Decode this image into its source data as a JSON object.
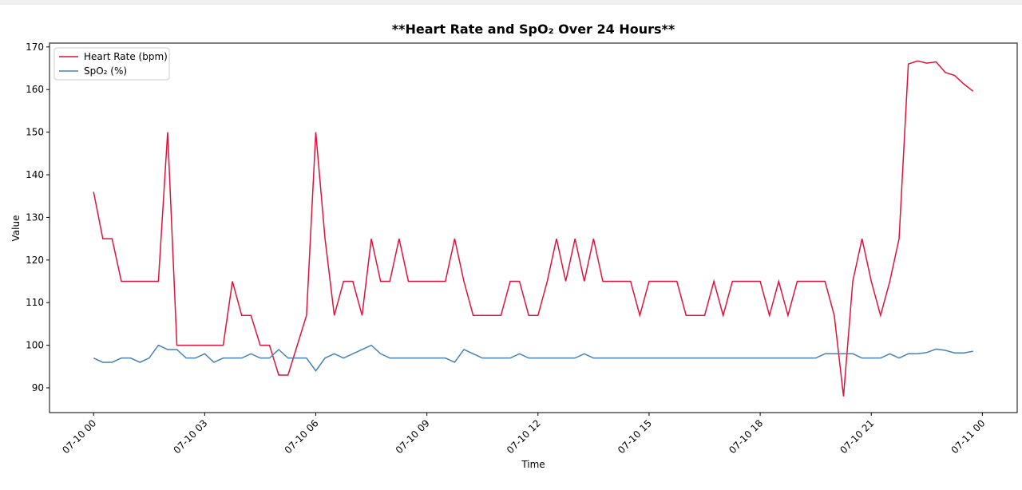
{
  "chart_data": {
    "type": "line",
    "title": "**Heart Rate and SpO₂ Over 24 Hours**",
    "xlabel": "Time",
    "ylabel": "Value",
    "x": [
      0,
      0.25,
      0.5,
      0.75,
      1,
      1.25,
      1.5,
      1.75,
      2,
      2.25,
      2.5,
      2.75,
      3,
      3.25,
      3.5,
      3.75,
      4,
      4.25,
      4.5,
      4.75,
      5,
      5.25,
      5.5,
      5.75,
      6,
      6.25,
      6.5,
      6.75,
      7,
      7.25,
      7.5,
      7.75,
      8,
      8.25,
      8.5,
      8.75,
      9,
      9.25,
      9.5,
      9.75,
      10,
      10.25,
      10.5,
      10.75,
      11,
      11.25,
      11.5,
      11.75,
      12,
      12.25,
      12.5,
      12.75,
      13,
      13.25,
      13.5,
      13.75,
      14,
      14.25,
      14.5,
      14.75,
      15,
      15.25,
      15.5,
      15.75,
      16,
      16.25,
      16.5,
      16.75,
      17,
      17.25,
      17.5,
      17.75,
      18,
      18.25,
      18.5,
      18.75,
      19,
      19.25,
      19.5,
      19.75,
      20,
      20.25,
      20.5,
      20.75,
      21,
      21.25,
      21.5,
      21.75,
      22,
      22.25,
      22.5,
      22.75,
      23,
      23.25,
      23.5,
      23.75
    ],
    "series": [
      {
        "name": "Heart Rate (bpm)",
        "color": "#dc143c",
        "values": [
          136,
          125,
          125,
          115,
          115,
          115,
          115,
          115,
          150,
          100,
          100,
          100,
          100,
          100,
          100,
          115,
          107,
          107,
          100,
          100,
          93,
          93,
          100,
          107,
          150,
          125,
          107,
          115,
          115,
          107,
          125,
          115,
          115,
          125,
          115,
          115,
          115,
          115,
          115,
          125,
          115,
          107,
          107,
          107,
          107,
          115,
          115,
          107,
          107,
          115,
          125,
          115,
          125,
          115,
          125,
          115,
          115,
          115,
          115,
          107,
          115,
          115,
          115,
          115,
          107,
          107,
          107,
          115,
          107,
          115,
          115,
          115,
          115,
          107,
          115,
          107,
          115,
          115,
          115,
          115,
          107,
          88,
          115,
          125,
          115,
          107,
          115,
          125,
          166,
          166.7,
          166.2,
          166.5,
          164,
          163.3,
          161.3,
          159.6
        ]
      },
      {
        "name": "SpO₂ (%)",
        "color": "#4682b4",
        "values": [
          97,
          96,
          96,
          97,
          97,
          96,
          97,
          100,
          99,
          99,
          97,
          97,
          98,
          96,
          97,
          97,
          97,
          98,
          97,
          97,
          99,
          97,
          97,
          97,
          94,
          97,
          98,
          97,
          98,
          99,
          100,
          98,
          97,
          97,
          97,
          97,
          97,
          97,
          97,
          96,
          99,
          98,
          97,
          97,
          97,
          97,
          98,
          97,
          97,
          97,
          97,
          97,
          97,
          98,
          97,
          97,
          97,
          97,
          97,
          97,
          97,
          97,
          97,
          97,
          97,
          97,
          97,
          97,
          97,
          97,
          97,
          97,
          97,
          97,
          97,
          97,
          97,
          97,
          97,
          98,
          98,
          98,
          98,
          97,
          97,
          97,
          98,
          97,
          98,
          98,
          98.3,
          99.1,
          98.8,
          98.2,
          98.2,
          98.6
        ]
      }
    ],
    "xlim": [
      -1.19,
      24.94
    ],
    "xticks": [
      {
        "value": 0,
        "label": "07-10 00"
      },
      {
        "value": 3,
        "label": "07-10 03"
      },
      {
        "value": 6,
        "label": "07-10 06"
      },
      {
        "value": 9,
        "label": "07-10 09"
      },
      {
        "value": 12,
        "label": "07-10 12"
      },
      {
        "value": 15,
        "label": "07-10 15"
      },
      {
        "value": 18,
        "label": "07-10 18"
      },
      {
        "value": 21,
        "label": "07-10 21"
      },
      {
        "value": 24,
        "label": "07-11 00"
      }
    ],
    "ylim": [
      84.2,
      170.9
    ],
    "yticks": [
      90,
      100,
      110,
      120,
      130,
      140,
      150,
      160,
      170
    ],
    "legend": "upper left",
    "grid": false
  }
}
